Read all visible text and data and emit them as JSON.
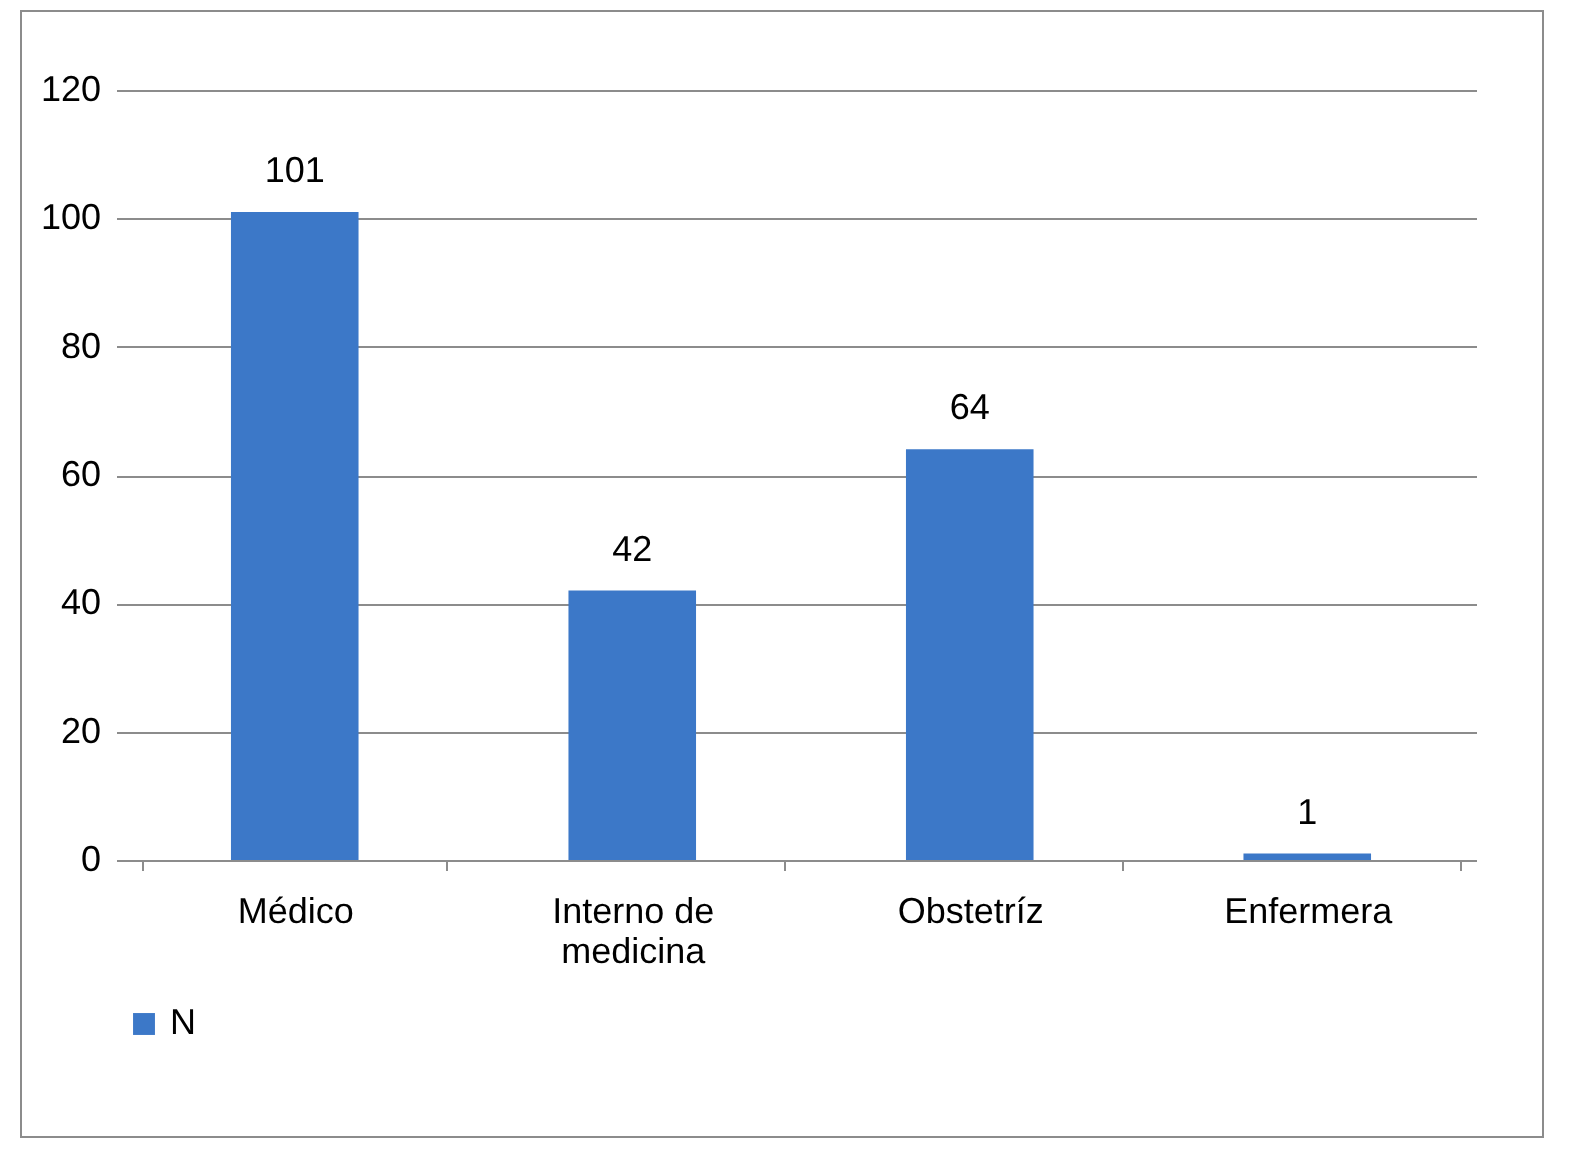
{
  "chart_data": {
    "type": "bar",
    "categories": [
      "Médico",
      "Interno de medicina",
      "Obstetríz",
      "Enfermera"
    ],
    "series": [
      {
        "name": "N",
        "color": "#3c78c8",
        "values": [
          101,
          42,
          64,
          1
        ]
      }
    ],
    "ylim": [
      0,
      120
    ],
    "yticks": [
      0,
      20,
      40,
      60,
      80,
      100,
      120
    ],
    "grid": "y",
    "legend": "bottom",
    "data_labels": true
  }
}
